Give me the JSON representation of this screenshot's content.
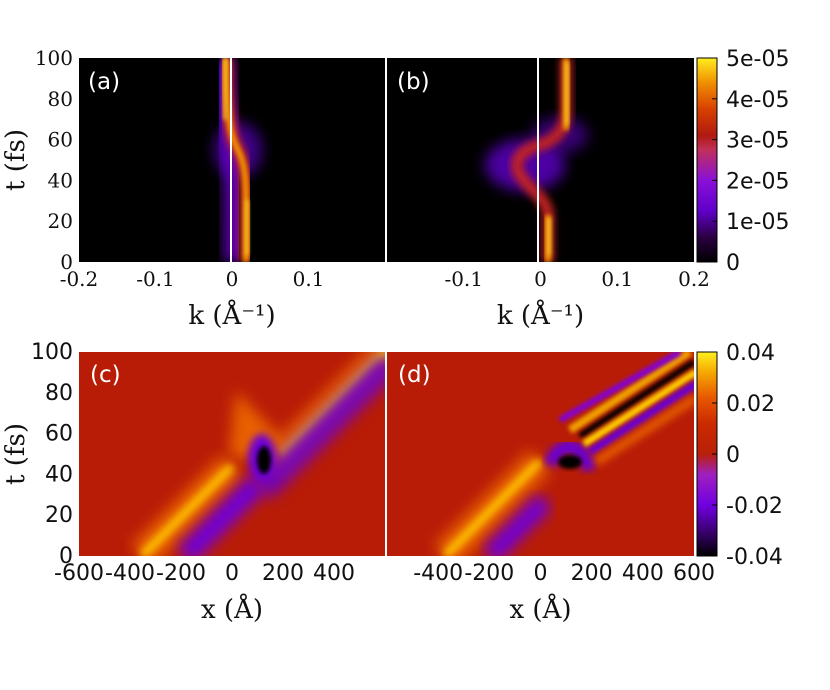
{
  "figure": {
    "panels": [
      "(a)",
      "(b)",
      "(c)",
      "(d)"
    ]
  },
  "chart_data": [
    {
      "id": "a",
      "type": "heatmap",
      "label": "(a)",
      "xlabel": "k (Å⁻¹)",
      "ylabel": "t (fs)",
      "xlim": [
        -0.2,
        0.2
      ],
      "ylim": [
        0,
        100
      ],
      "x_ticks": [
        "-0.2",
        "-0.1",
        "0",
        "0.1"
      ],
      "y_ticks": [
        "0",
        "20",
        "40",
        "60",
        "80",
        "100"
      ],
      "ridge": [
        {
          "t": 0,
          "k": 0.02
        },
        {
          "t": 30,
          "k": 0.02
        },
        {
          "t": 45,
          "k": 0.01
        },
        {
          "t": 55,
          "k": 0.0
        },
        {
          "t": 70,
          "k": -0.005
        },
        {
          "t": 100,
          "k": -0.005
        }
      ],
      "colorbar": {
        "min": 0,
        "max": 5e-05,
        "ticks": [
          "5e-05",
          "4e-05",
          "3e-05",
          "2e-05",
          "1e-05",
          "0"
        ]
      }
    },
    {
      "id": "b",
      "type": "heatmap",
      "label": "(b)",
      "xlabel": "k (Å⁻¹)",
      "ylabel": "",
      "xlim": [
        -0.2,
        0.2
      ],
      "ylim": [
        0,
        100
      ],
      "x_ticks": [
        "-0.1",
        "0",
        "0.1",
        "0.2"
      ],
      "y_ticks": [],
      "ridge": [
        {
          "t": 0,
          "k": 0.01
        },
        {
          "t": 25,
          "k": 0.01
        },
        {
          "t": 40,
          "k": -0.01
        },
        {
          "t": 55,
          "k": 0.0
        },
        {
          "t": 70,
          "k": 0.03
        },
        {
          "t": 100,
          "k": 0.03
        }
      ],
      "colorbar": {
        "min": 0,
        "max": 5e-05,
        "ticks": [
          "5e-05",
          "4e-05",
          "3e-05",
          "2e-05",
          "1e-05",
          "0"
        ]
      }
    },
    {
      "id": "c",
      "type": "heatmap",
      "label": "(c)",
      "xlabel": "x (Å)",
      "ylabel": "t (fs)",
      "xlim": [
        -600,
        600
      ],
      "ylim": [
        0,
        100
      ],
      "x_ticks": [
        "-600",
        "-400",
        "-200",
        "0",
        "200",
        "400"
      ],
      "y_ticks": [
        "0",
        "20",
        "40",
        "60",
        "80",
        "100"
      ],
      "colorbar": {
        "min": -0.04,
        "max": 0.04,
        "ticks": [
          "0.04",
          "0.02",
          "0",
          "-0.02",
          "-0.04"
        ]
      }
    },
    {
      "id": "d",
      "type": "heatmap",
      "label": "(d)",
      "xlabel": "x (Å)",
      "ylabel": "",
      "xlim": [
        -600,
        600
      ],
      "ylim": [
        0,
        100
      ],
      "x_ticks": [
        "-400",
        "-200",
        "0",
        "200",
        "400",
        "600"
      ],
      "y_ticks": [],
      "colorbar": {
        "min": -0.04,
        "max": 0.04,
        "ticks": [
          "0.04",
          "0.02",
          "0",
          "-0.02",
          "-0.04"
        ]
      }
    }
  ]
}
